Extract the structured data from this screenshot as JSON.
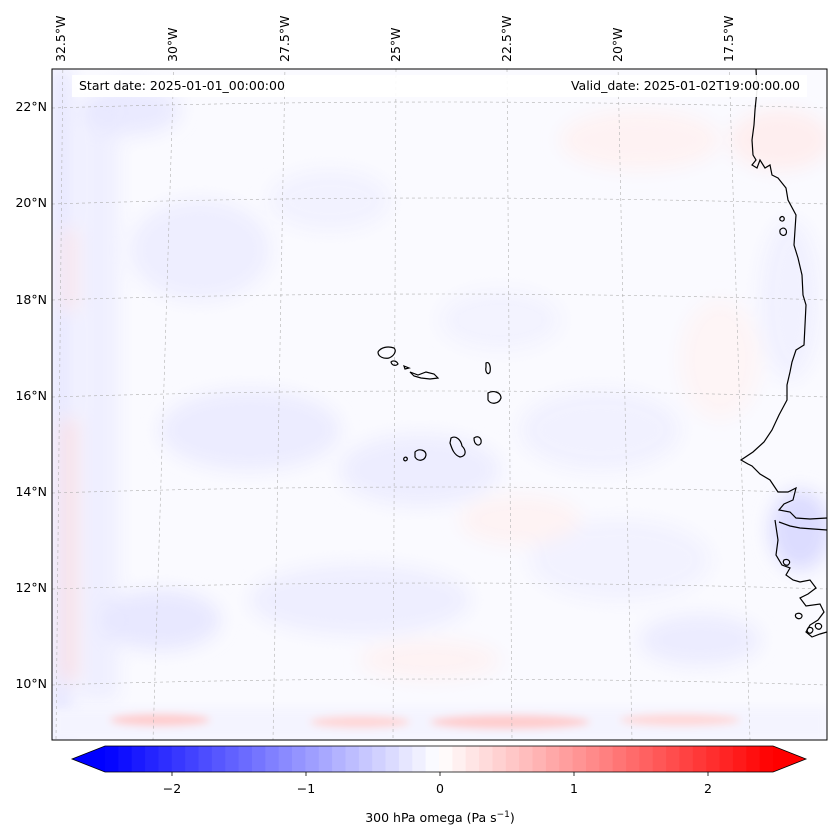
{
  "map": {
    "start_date_label": "Start date: 2025-01-01_00:00:00",
    "valid_date_label": "Valid_date: 2025-01-02T19:00:00.00",
    "lon_ticks": [
      "32.5°W",
      "30°W",
      "27.5°W",
      "25°W",
      "22.5°W",
      "20°W",
      "17.5°W"
    ],
    "lat_ticks": [
      "22°N",
      "20°N",
      "18°N",
      "16°N",
      "14°N",
      "12°N",
      "10°N"
    ],
    "coastline_color": "#000000",
    "gridline_color": "#b0b0b0",
    "background_color": "#fafaff"
  },
  "colorbar": {
    "ticks": [
      "−2",
      "−1",
      "0",
      "1",
      "2"
    ],
    "label": "300 hPa omega (Pa s",
    "label_sup": "−1",
    "label_close": ")",
    "colormap": "bwr",
    "min_color": "#0000ff",
    "mid_color": "#ffffff",
    "max_color": "#ff0000",
    "range": [
      -2.6,
      2.6
    ]
  }
}
